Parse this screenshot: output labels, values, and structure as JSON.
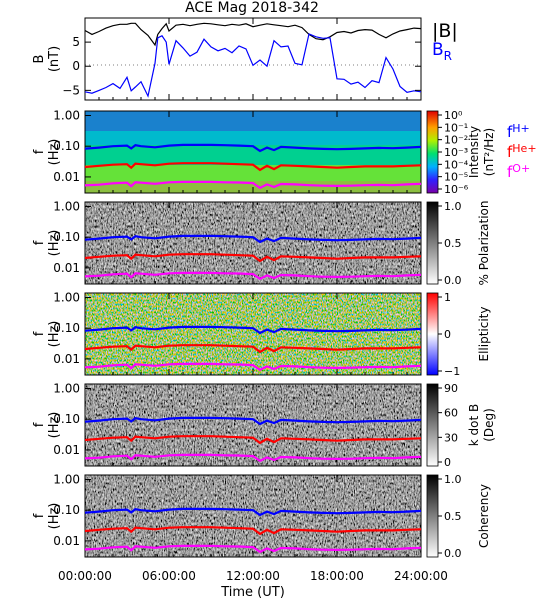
{
  "chart_data": {
    "title": "ACE Mag 2018-342",
    "type": "line",
    "xlabel": "Time (UT)",
    "x_ticks": [
      "00:00:00",
      "06:00:00",
      "12:00:00",
      "18:00:00",
      "24:00:00"
    ],
    "x_minor_hours": [
      1,
      2,
      3,
      4,
      5,
      7,
      8,
      9,
      10,
      11,
      13,
      14,
      15,
      16,
      17,
      19,
      20,
      21,
      22,
      23
    ],
    "xlim_hours": [
      0,
      24
    ],
    "panels": [
      {
        "type": "line",
        "ylabel": [
          "B",
          "(nT)"
        ],
        "ylim": [
          -7,
          10
        ],
        "y_ticks": [
          {
            "v": 5,
            "t": "5"
          },
          {
            "v": 0,
            "t": "0"
          },
          {
            "v": -5,
            "t": "−5"
          }
        ],
        "legend": [
          {
            "label": "|B|",
            "color": "#000000"
          },
          {
            "label": "B",
            "sub": "R",
            "color": "#0000ff"
          }
        ],
        "series": [
          {
            "name": "|B|",
            "color": "#000000",
            "x": [
              0,
              0.5,
              1,
              1.5,
              2,
              2.5,
              3,
              3.3,
              3.6,
              4,
              4.5,
              5,
              5.2,
              5.5,
              5.8,
              6,
              6.5,
              7,
              7.5,
              8,
              8.5,
              9,
              9.5,
              10,
              10.5,
              11,
              11.5,
              12,
              12.5,
              13,
              13.5,
              14,
              14.5,
              15,
              15.5,
              16,
              16.5,
              17,
              17.5,
              18,
              18.5,
              19,
              19.5,
              20,
              20.5,
              21,
              21.5,
              22,
              22.5,
              23,
              23.5,
              24
            ],
            "y": [
              7.4,
              6.6,
              7.2,
              7.9,
              8.4,
              8.7,
              8.7,
              8.9,
              8.9,
              7.6,
              6.4,
              4.4,
              6.6,
              7.8,
              8.8,
              7.3,
              8.5,
              8.7,
              8.4,
              8.7,
              8.9,
              8.8,
              8.6,
              8.4,
              8.7,
              8.5,
              8.8,
              8.2,
              8.5,
              8.8,
              8.6,
              8.4,
              8.2,
              8.5,
              8.0,
              6.6,
              5.7,
              5.5,
              6.1,
              7.0,
              7.2,
              6.9,
              7.4,
              7.6,
              7.5,
              6.6,
              5.9,
              6.7,
              7.3,
              7.6,
              7.9,
              7.8
            ]
          },
          {
            "name": "B_R",
            "color": "#0000ff",
            "x": [
              0,
              0.5,
              1,
              1.5,
              2,
              2.5,
              3,
              3.3,
              3.6,
              4,
              4.5,
              5,
              5.2,
              5.5,
              5.8,
              6,
              6.5,
              7,
              7.5,
              8,
              8.5,
              9,
              9.5,
              10,
              10.5,
              11,
              11.5,
              12,
              12.5,
              13,
              13.5,
              14,
              14.5,
              15,
              15.5,
              16,
              16.5,
              17,
              17.5,
              18,
              18.5,
              19,
              19.5,
              20,
              20.5,
              21,
              21.5,
              22,
              22.5,
              23,
              23.5,
              24
            ],
            "y": [
              -5.3,
              -5.6,
              -5.0,
              -4.4,
              -3.6,
              -4.6,
              -2.3,
              -5.1,
              -4.3,
              -3.2,
              -6.2,
              0.6,
              5.9,
              6.3,
              5.0,
              0.4,
              5.3,
              3.8,
              2.1,
              2.9,
              5.6,
              4.0,
              3.2,
              3.7,
              2.8,
              4.2,
              3.6,
              0.2,
              1.3,
              0.0,
              5.3,
              4.0,
              4.2,
              0.6,
              0.3,
              6.7,
              6.1,
              5.8,
              5.9,
              -2.6,
              -2.7,
              -3.7,
              -3.3,
              -4.4,
              -3.0,
              -3.4,
              1.8,
              -0.6,
              -4.2,
              -5.4,
              -5.1,
              -5.3
            ]
          }
        ]
      },
      {
        "type": "heatmap",
        "ylabel": [
          "f",
          "(Hz)"
        ],
        "ylim_log": [
          0.003,
          1.4
        ],
        "y_ticks": [
          "1.00",
          "0.10",
          "0.01"
        ],
        "colorbar": {
          "label": [
            "Intensity",
            "(nT²/Hz)"
          ],
          "scale": "log",
          "ticks": [
            "10⁰",
            "10⁻¹",
            "10⁻²",
            "10⁻³",
            "10⁻⁴",
            "10⁻⁵",
            "10⁻⁶"
          ]
        },
        "legend": [
          {
            "label": "f",
            "sub": "H+",
            "color": "#0000ff"
          },
          {
            "label": "f",
            "sub": "He+",
            "color": "#ff0000"
          },
          {
            "label": "f",
            "sub": "O+",
            "color": "#ff00ff"
          }
        ]
      },
      {
        "type": "heatmap",
        "ylabel": [
          "f",
          "(Hz)"
        ],
        "ylim_log": [
          0.003,
          1.4
        ],
        "y_ticks": [
          "1.00",
          "0.10",
          "0.01"
        ],
        "colorbar": {
          "label": [
            "% Polarization"
          ],
          "scale": "linear",
          "ticks": [
            "1.0",
            "0.5",
            "0.0"
          ]
        }
      },
      {
        "type": "heatmap",
        "ylabel": [
          "f",
          "(Hz)"
        ],
        "ylim_log": [
          0.003,
          1.4
        ],
        "y_ticks": [
          "1.00",
          "0.10",
          "0.01"
        ],
        "colorbar": {
          "label": [
            "Ellipticity"
          ],
          "scale": "linear",
          "ticks": [
            "1",
            "0",
            "−1"
          ]
        }
      },
      {
        "type": "heatmap",
        "ylabel": [
          "f",
          "(Hz)"
        ],
        "ylim_log": [
          0.003,
          1.4
        ],
        "y_ticks": [
          "1.00",
          "0.10",
          "0.01"
        ],
        "colorbar": {
          "label": [
            "k dot B",
            "(Deg)"
          ],
          "scale": "linear",
          "ticks": [
            "90",
            "60",
            "30",
            "0"
          ]
        }
      },
      {
        "type": "heatmap",
        "ylabel": [
          "f",
          "(Hz)"
        ],
        "ylim_log": [
          0.003,
          1.4
        ],
        "y_ticks": [
          "1.00",
          "0.10",
          "0.01"
        ],
        "colorbar": {
          "label": [
            "Coherency"
          ],
          "scale": "linear",
          "ticks": [
            "1.0",
            "0.5",
            "0.0"
          ]
        }
      }
    ],
    "gyrofrequency_lines": {
      "x": [
        0,
        1,
        2,
        3,
        3.3,
        3.6,
        4,
        5,
        6,
        7,
        8,
        9,
        10,
        11,
        12,
        12.5,
        13,
        13.5,
        14,
        15,
        16,
        17,
        18,
        19,
        20,
        21,
        22,
        23,
        24
      ],
      "fH_hz": [
        0.083,
        0.09,
        0.1,
        0.105,
        0.085,
        0.108,
        0.1,
        0.092,
        0.105,
        0.11,
        0.11,
        0.11,
        0.108,
        0.105,
        0.1,
        0.07,
        0.09,
        0.075,
        0.095,
        0.09,
        0.085,
        0.082,
        0.08,
        0.082,
        0.085,
        0.088,
        0.086,
        0.09,
        0.095
      ],
      "fHe_hz": [
        0.021,
        0.023,
        0.025,
        0.026,
        0.02,
        0.027,
        0.026,
        0.024,
        0.027,
        0.028,
        0.028,
        0.028,
        0.027,
        0.026,
        0.025,
        0.017,
        0.023,
        0.018,
        0.024,
        0.023,
        0.022,
        0.021,
        0.02,
        0.021,
        0.022,
        0.022,
        0.022,
        0.023,
        0.024
      ],
      "fO_hz": [
        0.0053,
        0.0056,
        0.0062,
        0.0065,
        0.005,
        0.0067,
        0.0065,
        0.006,
        0.0067,
        0.0069,
        0.0069,
        0.0069,
        0.0067,
        0.0066,
        0.0063,
        0.0044,
        0.0057,
        0.0047,
        0.0059,
        0.0057,
        0.0054,
        0.0052,
        0.0051,
        0.0052,
        0.0054,
        0.0055,
        0.0054,
        0.0057,
        0.006
      ]
    }
  }
}
